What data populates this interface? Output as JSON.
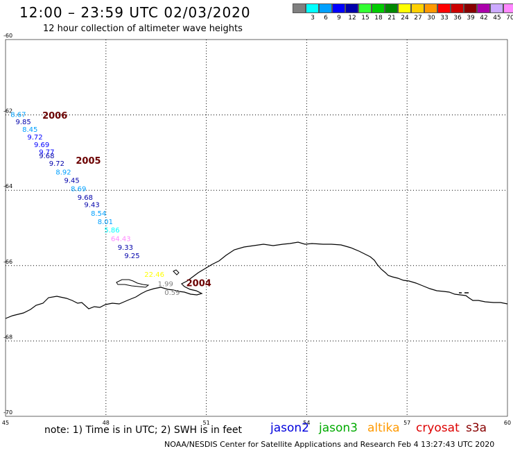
{
  "header": {
    "title": "12:00 – 23:59 UTC 02/03/2020",
    "subtitle": "12 hour collection of altimeter wave heights"
  },
  "legend": {
    "unit": "(ft)",
    "swatches": [
      {
        "color": "#808080",
        "label": ""
      },
      {
        "color": "#00ffff",
        "label": "3"
      },
      {
        "color": "#00a0ff",
        "label": "6"
      },
      {
        "color": "#0000ff",
        "label": "9"
      },
      {
        "color": "#0000aa",
        "label": "12"
      },
      {
        "color": "#33ff33",
        "label": "15"
      },
      {
        "color": "#00cc00",
        "label": "18"
      },
      {
        "color": "#008800",
        "label": "21"
      },
      {
        "color": "#ffff00",
        "label": "24"
      },
      {
        "color": "#ffd000",
        "label": "27"
      },
      {
        "color": "#ff9900",
        "label": "30"
      },
      {
        "color": "#ff0000",
        "label": "33"
      },
      {
        "color": "#cc0000",
        "label": "36"
      },
      {
        "color": "#880000",
        "label": "39"
      },
      {
        "color": "#aa00aa",
        "label": "42"
      },
      {
        "color": "#ccaaff",
        "label": "45"
      },
      {
        "color": "#ff88ff",
        "label": "70"
      },
      {
        "color": "#000000",
        "label": ""
      }
    ]
  },
  "axes": {
    "lon_min": 45,
    "lon_max": 60,
    "lat_min": -70,
    "lat_max": -60,
    "lon_ticks": [
      45,
      48,
      51,
      54,
      57,
      60
    ],
    "lat_ticks": [
      -60,
      -62,
      -64,
      -66,
      -68,
      -70
    ],
    "lon_tick_labels": [
      "45",
      "48",
      "51",
      "54",
      "57",
      "60"
    ],
    "lat_tick_labels": [
      "-60",
      "-62",
      "-64",
      "-66",
      "-68",
      "-70"
    ],
    "grid": "dotted"
  },
  "chart_data": {
    "type": "scatter",
    "observations": [
      {
        "lon": 45.15,
        "lat": -62.05,
        "value": "8.67",
        "color": "#00a0ff"
      },
      {
        "lon": 45.3,
        "lat": -62.25,
        "value": "9.85",
        "color": "#0000aa"
      },
      {
        "lon": 45.5,
        "lat": -62.45,
        "value": "8.45",
        "color": "#00a0ff"
      },
      {
        "lon": 45.65,
        "lat": -62.65,
        "value": "9.72",
        "color": "#0000ff"
      },
      {
        "lon": 45.85,
        "lat": -62.85,
        "value": "9.69",
        "color": "#0000ff"
      },
      {
        "lon": 46.0,
        "lat": -63.05,
        "value": "9.77",
        "color": "#0000ff"
      },
      {
        "lon": 46.0,
        "lat": -63.15,
        "value": "9.68",
        "color": "#0000aa"
      },
      {
        "lon": 46.3,
        "lat": -63.35,
        "value": "9.72",
        "color": "#0000aa"
      },
      {
        "lon": 46.5,
        "lat": -63.58,
        "value": "8.92",
        "color": "#00a0ff"
      },
      {
        "lon": 46.75,
        "lat": -63.8,
        "value": "9.45",
        "color": "#0000aa"
      },
      {
        "lon": 46.95,
        "lat": -64.02,
        "value": "8.69",
        "color": "#00a0ff"
      },
      {
        "lon": 47.15,
        "lat": -64.25,
        "value": "9.68",
        "color": "#0000aa"
      },
      {
        "lon": 47.35,
        "lat": -64.45,
        "value": "9.43",
        "color": "#0000aa"
      },
      {
        "lon": 47.55,
        "lat": -64.68,
        "value": "8.54",
        "color": "#00a0ff"
      },
      {
        "lon": 47.75,
        "lat": -64.9,
        "value": "8.01",
        "color": "#00a0ff"
      },
      {
        "lon": 47.95,
        "lat": -65.12,
        "value": "5.86",
        "color": "#00ffff"
      },
      {
        "lon": 48.15,
        "lat": -65.35,
        "value": "64.43",
        "color": "#ff88ff"
      },
      {
        "lon": 48.35,
        "lat": -65.58,
        "value": "9.33",
        "color": "#0000aa"
      },
      {
        "lon": 48.55,
        "lat": -65.8,
        "value": "9.25",
        "color": "#0000aa"
      },
      {
        "lon": 49.15,
        "lat": -66.3,
        "value": "22.46",
        "color": "#ffff00"
      },
      {
        "lon": 49.55,
        "lat": -66.55,
        "value": "1.99",
        "color": "#808080"
      },
      {
        "lon": 49.75,
        "lat": -66.78,
        "value": "0.59",
        "color": "#808080"
      }
    ],
    "pass_labels": [
      {
        "lon": 46.1,
        "lat": -62.1,
        "text": "2006"
      },
      {
        "lon": 47.1,
        "lat": -63.3,
        "text": "2005"
      },
      {
        "lon": 50.4,
        "lat": -66.55,
        "text": "2004"
      }
    ]
  },
  "footer": {
    "note": "note: 1) Time is in UTC; 2) SWH is in feet",
    "credit": "NOAA/NESDIS Center for Satellite Applications and Research   Feb  4 13:27:43 UTC 2020",
    "satellites": [
      {
        "name": "jason2",
        "color": "#0000dd"
      },
      {
        "name": "jason3",
        "color": "#00aa00"
      },
      {
        "name": "altika",
        "color": "#ff9900"
      },
      {
        "name": "cryosat",
        "color": "#dd0000"
      },
      {
        "name": "s3a",
        "color": "#880000"
      }
    ]
  }
}
